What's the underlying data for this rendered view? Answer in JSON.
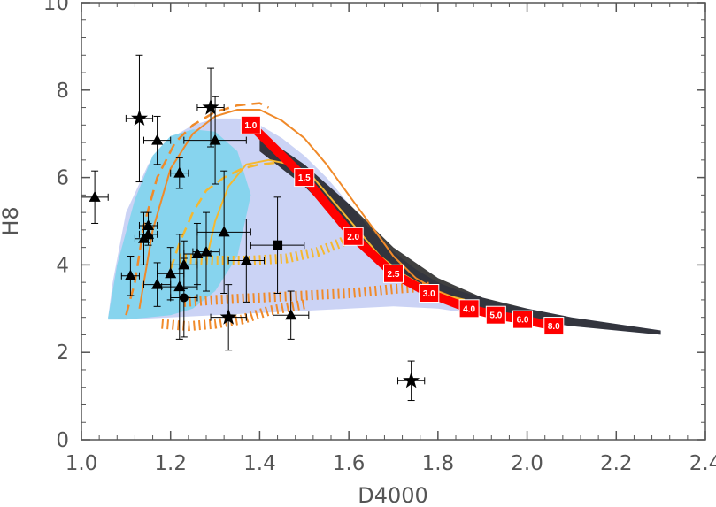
{
  "chart_data": {
    "type": "scatter",
    "xlabel": "D4000",
    "ylabel": "H8",
    "xlim": [
      1.0,
      2.4
    ],
    "ylim": [
      0,
      10
    ],
    "x_ticks": [
      "1.0",
      "1.2",
      "1.4",
      "1.6",
      "1.8",
      "2.0",
      "2.2",
      "2.4"
    ],
    "y_ticks": [
      "0",
      "2",
      "4",
      "6",
      "8",
      "10"
    ],
    "grid": false,
    "legend": "none",
    "colors": {
      "model_cloud": "#87d4ee",
      "data_cloud_blue": "#3050d8",
      "data_cloud_black": "#000000",
      "track_red": "#ff0000",
      "track_orange": "#f08a2a",
      "track_yellow": "#f5b830",
      "markers": "#000000",
      "axes": "#555555"
    },
    "age_track": {
      "labels": [
        "1.0",
        "1.5",
        "2.0",
        "2.5",
        "3.0",
        "4.0",
        "5.0",
        "6.0",
        "8.0"
      ],
      "x": [
        1.38,
        1.5,
        1.61,
        1.7,
        1.78,
        1.87,
        1.93,
        1.99,
        2.06
      ],
      "y": [
        7.2,
        6.0,
        4.65,
        3.8,
        3.35,
        3.0,
        2.85,
        2.75,
        2.6
      ]
    },
    "orange_solid_curve": {
      "x": [
        1.13,
        1.16,
        1.2,
        1.25,
        1.3,
        1.35,
        1.4,
        1.45,
        1.5,
        1.55,
        1.6,
        1.65,
        1.7,
        1.75,
        1.8,
        1.85
      ],
      "y": [
        3.0,
        4.8,
        6.2,
        7.0,
        7.4,
        7.55,
        7.55,
        7.3,
        6.9,
        6.3,
        5.6,
        4.9,
        4.2,
        3.7,
        3.4,
        3.2
      ]
    },
    "orange_dashed_curve": {
      "x": [
        1.1,
        1.12,
        1.14,
        1.17,
        1.21,
        1.25,
        1.3,
        1.35,
        1.4,
        1.42
      ],
      "y": [
        2.85,
        3.6,
        4.9,
        6.0,
        6.8,
        7.2,
        7.5,
        7.65,
        7.7,
        7.6
      ]
    },
    "yellow_solid_curve": {
      "x": [
        1.28,
        1.3,
        1.33,
        1.37,
        1.42,
        1.47,
        1.52,
        1.57,
        1.62,
        1.67,
        1.72,
        1.77,
        1.82,
        1.86
      ],
      "y": [
        4.1,
        5.0,
        5.8,
        6.3,
        6.4,
        6.3,
        6.0,
        5.4,
        4.8,
        4.2,
        3.8,
        3.5,
        3.3,
        3.2
      ]
    },
    "yellow_dashed_curve": {
      "x": [
        1.2,
        1.22,
        1.25,
        1.28,
        1.32,
        1.36,
        1.4,
        1.45
      ],
      "y": [
        3.9,
        4.5,
        5.2,
        5.7,
        6.0,
        6.2,
        6.3,
        6.35
      ]
    },
    "orange_hatched_band": {
      "x": [
        1.23,
        1.3,
        1.4,
        1.5,
        1.6,
        1.7,
        1.78
      ],
      "y": [
        3.15,
        3.2,
        3.25,
        3.3,
        3.35,
        3.45,
        3.5
      ]
    },
    "orange_hatched_lower": {
      "x": [
        1.18,
        1.24,
        1.3,
        1.36,
        1.42,
        1.5
      ],
      "y": [
        2.65,
        2.6,
        2.65,
        2.75,
        2.95,
        3.1
      ]
    },
    "yellow_hatched_band": {
      "x": [
        1.22,
        1.3,
        1.38,
        1.46,
        1.53,
        1.58,
        1.62
      ],
      "y": [
        4.15,
        4.1,
        4.1,
        4.15,
        4.3,
        4.5,
        4.7
      ]
    },
    "stars": [
      {
        "x": 1.13,
        "y": 7.35,
        "xerr": 0.03,
        "yerr": 1.45
      },
      {
        "x": 1.29,
        "y": 7.6,
        "xerr": 0.03,
        "yerr": 0.9
      },
      {
        "x": 1.33,
        "y": 2.8,
        "xerr": 0.04,
        "yerr": 0.75
      },
      {
        "x": 1.74,
        "y": 1.35,
        "xerr": 0.03,
        "yerr": 0.45
      }
    ],
    "triangles": [
      {
        "x": 1.03,
        "y": 5.55,
        "xerr": 0.03,
        "yerr": 0.6
      },
      {
        "x": 1.17,
        "y": 6.85,
        "xerr": 0.03,
        "yerr": 0.55
      },
      {
        "x": 1.22,
        "y": 6.1,
        "xerr": 0.02,
        "yerr": 0.35
      },
      {
        "x": 1.3,
        "y": 6.85,
        "xerr": 0.07,
        "yerr": 1.0
      },
      {
        "x": 1.14,
        "y": 4.6,
        "xerr": 0.02,
        "yerr": 0.6
      },
      {
        "x": 1.15,
        "y": 4.9,
        "xerr": 0.02,
        "yerr": 0.3
      },
      {
        "x": 1.15,
        "y": 4.7,
        "xerr": 0.02,
        "yerr": 0.25
      },
      {
        "x": 1.11,
        "y": 3.75,
        "xerr": 0.02,
        "yerr": 0.45
      },
      {
        "x": 1.17,
        "y": 3.55,
        "xerr": 0.03,
        "yerr": 0.5
      },
      {
        "x": 1.2,
        "y": 3.8,
        "xerr": 0.03,
        "yerr": 0.6
      },
      {
        "x": 1.22,
        "y": 3.5,
        "xerr": 0.04,
        "yerr": 1.2
      },
      {
        "x": 1.23,
        "y": 4.0,
        "xerr": 0.03,
        "yerr": 0.55
      },
      {
        "x": 1.26,
        "y": 4.25,
        "xerr": 0.03,
        "yerr": 0.7
      },
      {
        "x": 1.28,
        "y": 4.3,
        "xerr": 0.03,
        "yerr": 0.9
      },
      {
        "x": 1.32,
        "y": 4.75,
        "xerr": 0.06,
        "yerr": 1.4
      },
      {
        "x": 1.37,
        "y": 4.1,
        "xerr": 0.04,
        "yerr": 0.95
      },
      {
        "x": 1.47,
        "y": 2.85,
        "xerr": 0.04,
        "yerr": 0.55
      }
    ],
    "circles": [
      {
        "x": 1.23,
        "y": 3.25,
        "xerr": 0.03,
        "yerr": 0.9
      }
    ],
    "squares": [
      {
        "x": 1.44,
        "y": 4.45,
        "xerr": 0.06,
        "yerr": 1.1
      }
    ]
  }
}
